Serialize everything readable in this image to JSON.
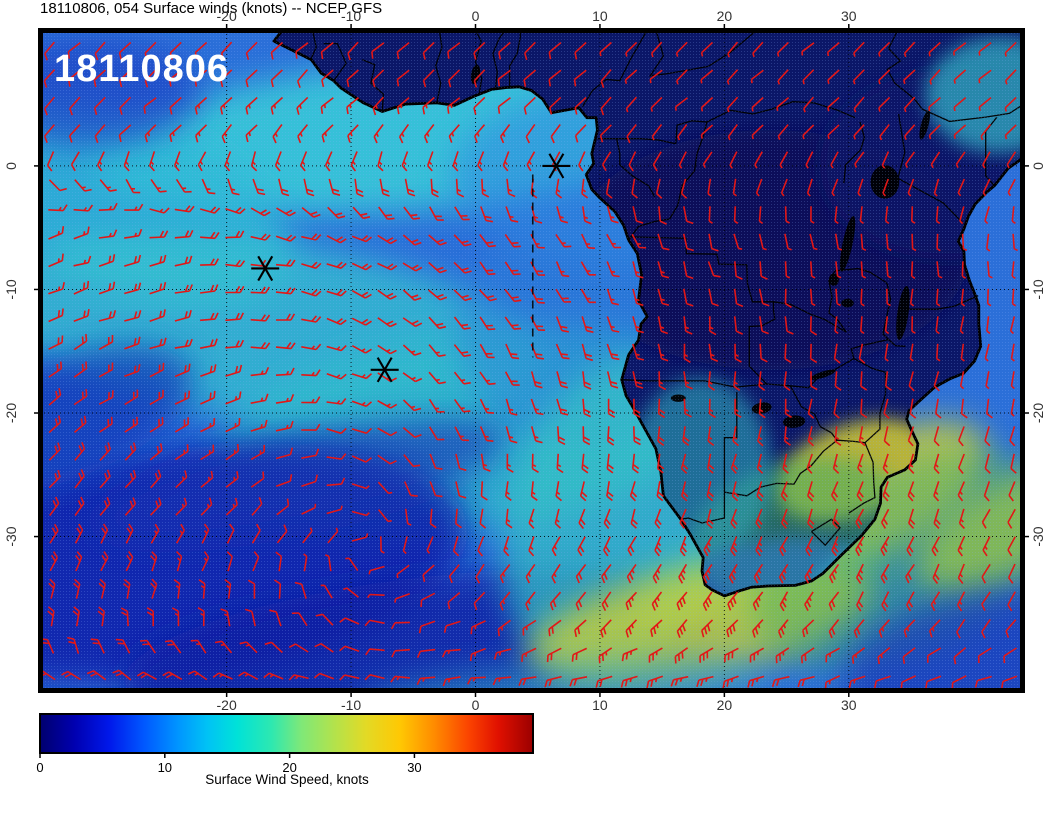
{
  "title": "18110806, 054 Surface winds (knots) -- NCEP GFS",
  "map_label": "18110806",
  "axes": {
    "lon_tick_labels": [
      "-20",
      "-10",
      "0",
      "10",
      "20",
      "30"
    ],
    "lon_tick_values": [
      -20,
      -10,
      0,
      10,
      20,
      30
    ],
    "lat_tick_labels": [
      "0",
      "-10",
      "-20",
      "-30"
    ],
    "lat_tick_values": [
      0,
      -10,
      -20,
      -30
    ]
  },
  "colorbar": {
    "label": "Surface Wind Speed, knots",
    "tick_labels": [
      "0",
      "10",
      "20",
      "30"
    ],
    "tick_values": [
      0,
      10,
      20,
      30
    ],
    "value_range": [
      0,
      39.5
    ],
    "gradient_stops": [
      {
        "at": 0.0,
        "color": "#00006e"
      },
      {
        "at": 0.07,
        "color": "#0000b0"
      },
      {
        "at": 0.14,
        "color": "#0018ea"
      },
      {
        "at": 0.21,
        "color": "#0057ff"
      },
      {
        "at": 0.28,
        "color": "#0095ff"
      },
      {
        "at": 0.34,
        "color": "#00c3f5"
      },
      {
        "at": 0.4,
        "color": "#00e2d8"
      },
      {
        "at": 0.47,
        "color": "#2ee8b0"
      },
      {
        "at": 0.53,
        "color": "#7fe878"
      },
      {
        "at": 0.6,
        "color": "#b5e24a"
      },
      {
        "at": 0.66,
        "color": "#e2da26"
      },
      {
        "at": 0.73,
        "color": "#ffc803"
      },
      {
        "at": 0.8,
        "color": "#ff8b00"
      },
      {
        "at": 0.87,
        "color": "#fb4300"
      },
      {
        "at": 0.93,
        "color": "#e01000"
      },
      {
        "at": 1.0,
        "color": "#9b0000"
      }
    ]
  },
  "markers": [
    {
      "lon": 6.5,
      "lat": 0.0
    },
    {
      "lon": -16.9,
      "lat": -8.3
    },
    {
      "lon": -7.3,
      "lat": -16.5
    }
  ],
  "track_line": {
    "lon": 4.6,
    "lat_from": -0.7,
    "lat_to": -15.5
  },
  "colors": {
    "barb": "#e21717",
    "coast": "#000000",
    "ocean_base": "#2b6fd8",
    "land_base": "#0b1768",
    "frame": "#000000"
  },
  "chart_data": {
    "type": "heatmap",
    "title": "18110806, 054 Surface winds (knots) -- NCEP GFS",
    "model": "NCEP GFS",
    "run": "18110806",
    "forecast_hour": "054",
    "variable": "Surface winds (knots)",
    "extent": {
      "lon_min": -35,
      "lon_max": 44,
      "lat_min": -42.5,
      "lat_max": 11
    },
    "lon_ticks": [
      -20,
      -10,
      0,
      10,
      20,
      30
    ],
    "lat_ticks": [
      0,
      -10,
      -20,
      -30
    ],
    "colorbar_label": "Surface Wind Speed, knots",
    "colorbar_ticks": [
      0,
      10,
      20,
      30
    ],
    "colorbar_range_knots": [
      0,
      39.5
    ],
    "overlay": "red wind barbs on ~2 deg grid; black coastlines and country borders; dotted 10-degree graticule; three black asterisk markers; dashed meridional track segment near 5E from equator to ~15S",
    "wind_regimes": [
      {
        "region": "South Atlantic subtropical high center ~(9W, 31S)",
        "speed_knots": "2-8"
      },
      {
        "region": "Southeast trade winds, central/western basin",
        "speed_knots": "12-20"
      },
      {
        "region": "Gulf of Guinea monsoon southwesterlies",
        "speed_knots": "5-12"
      },
      {
        "region": "Agulhas / South African south coast maxima (yellow)",
        "speed_knots": "25-33"
      },
      {
        "region": "African interior (Congo basin, dark blue)",
        "speed_knots": "0-6"
      }
    ],
    "markers_lonlat": [
      [
        6.5,
        0.0
      ],
      [
        -16.9,
        -8.3
      ],
      [
        -7.3,
        -16.5
      ]
    ]
  }
}
